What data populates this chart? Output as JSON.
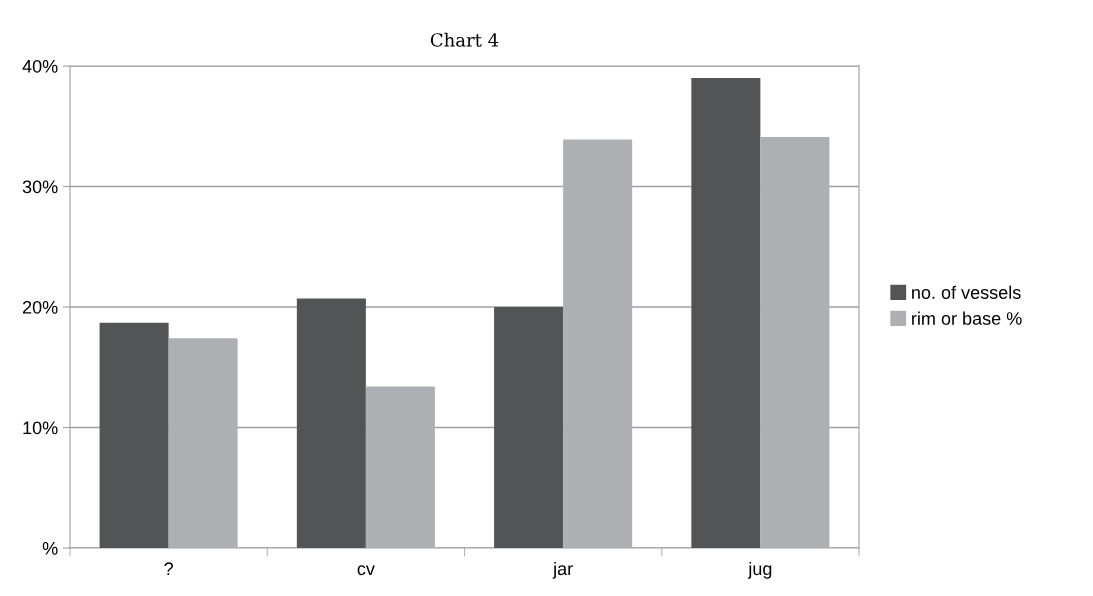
{
  "chart_data": {
    "type": "bar",
    "title": "Chart 4",
    "categories": [
      "?",
      "cv",
      "jar",
      "jug"
    ],
    "series": [
      {
        "name": "no. of vessels",
        "color": "#535456",
        "values": [
          18.7,
          20.7,
          20.0,
          39.0
        ]
      },
      {
        "name": "rim or base %",
        "color": "#aeafb2",
        "values": [
          17.4,
          13.4,
          33.9,
          34.1
        ]
      }
    ],
    "ylim": [
      0,
      40
    ],
    "yticks": [
      {
        "value": 0,
        "label": "%"
      },
      {
        "value": 10,
        "label": "10%"
      },
      {
        "value": 20,
        "label": "20%"
      },
      {
        "value": 30,
        "label": "30%"
      },
      {
        "value": 40,
        "label": "40%"
      }
    ],
    "grid": "y",
    "legend": "right"
  }
}
